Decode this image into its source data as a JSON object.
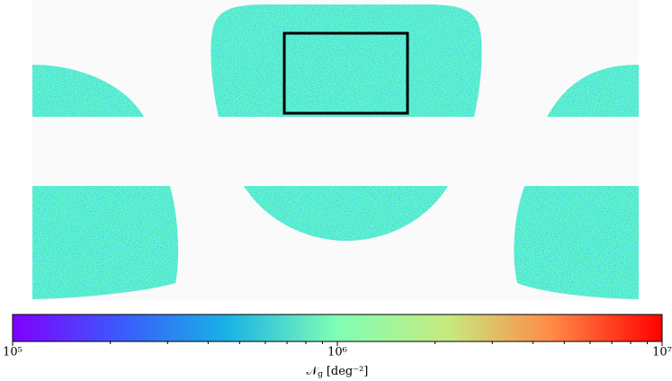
{
  "chart_data": {
    "type": "sky-map",
    "colorbar": {
      "lim": [
        100000,
        10000000
      ],
      "scale": "log",
      "colormap": "rainbow",
      "ticks": [
        {
          "value": 100000,
          "label": "10⁵"
        },
        {
          "value": 1000000,
          "label": "10⁶"
        },
        {
          "value": 10000000,
          "label": "10⁷"
        }
      ],
      "minor_ticks": [
        200000,
        300000,
        400000,
        500000,
        600000,
        700000,
        800000,
        900000,
        2000000,
        3000000,
        4000000,
        5000000,
        6000000,
        7000000,
        8000000,
        9000000
      ],
      "label": {
        "symbol": "𝒩",
        "subscript": "g",
        "unit": "[deg⁻²]"
      }
    }
  }
}
